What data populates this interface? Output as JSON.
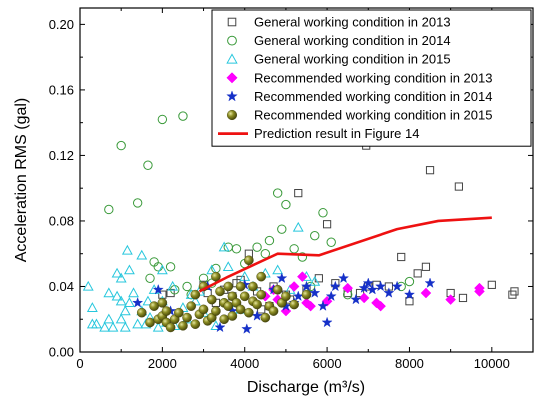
{
  "chart_data": {
    "type": "scatter",
    "xlabel": "Discharge (m³/s)",
    "ylabel": "Acceleration RMS (gal)",
    "xlim": [
      0,
      11000
    ],
    "ylim": [
      0,
      0.21
    ],
    "x_ticks": [
      0,
      2000,
      4000,
      6000,
      8000,
      10000
    ],
    "y_ticks": [
      0.0,
      0.04,
      0.08,
      0.12,
      0.16,
      0.2
    ],
    "x_tick_labels": [
      "0",
      "2000",
      "4000",
      "6000",
      "8000",
      "10000"
    ],
    "y_tick_labels": [
      "0.00",
      "0.04",
      "0.08",
      "0.12",
      "0.16",
      "0.20"
    ],
    "legend_position": "top-right",
    "series": [
      {
        "name": "General working condition in 2013",
        "marker": "square-open",
        "color": "#444444",
        "points": [
          [
            3000,
            0.041
          ],
          [
            3300,
            0.03
          ],
          [
            3500,
            0.038
          ],
          [
            3700,
            0.034
          ],
          [
            3800,
            0.042
          ],
          [
            4100,
            0.06
          ],
          [
            4300,
            0.037
          ],
          [
            4600,
            0.028
          ],
          [
            4700,
            0.04
          ],
          [
            5000,
            0.035
          ],
          [
            5300,
            0.097
          ],
          [
            5500,
            0.038
          ],
          [
            5800,
            0.045
          ],
          [
            6000,
            0.078
          ],
          [
            6500,
            0.036
          ],
          [
            6800,
            0.036
          ],
          [
            6950,
            0.126
          ],
          [
            7200,
            0.041
          ],
          [
            7500,
            0.04
          ],
          [
            7800,
            0.058
          ],
          [
            8200,
            0.048
          ],
          [
            8400,
            0.052
          ],
          [
            8500,
            0.111
          ],
          [
            9200,
            0.101
          ],
          [
            9300,
            0.033
          ],
          [
            10000,
            0.041
          ],
          [
            10500,
            0.035
          ],
          [
            10550,
            0.037
          ],
          [
            2000,
            0.035
          ],
          [
            2200,
            0.036
          ],
          [
            3100,
            0.036
          ],
          [
            3900,
            0.044
          ],
          [
            4400,
            0.026
          ],
          [
            5100,
            0.032
          ],
          [
            6200,
            0.042
          ],
          [
            7000,
            0.04
          ],
          [
            8000,
            0.031
          ],
          [
            9000,
            0.036
          ]
        ]
      },
      {
        "name": "General working condition in 2014",
        "marker": "circle-open",
        "color": "#3a9a3a",
        "points": [
          [
            700,
            0.087
          ],
          [
            1000,
            0.126
          ],
          [
            1400,
            0.091
          ],
          [
            1650,
            0.114
          ],
          [
            1900,
            0.052
          ],
          [
            2000,
            0.142
          ],
          [
            2200,
            0.052
          ],
          [
            2500,
            0.144
          ],
          [
            1700,
            0.045
          ],
          [
            2700,
            0.035
          ],
          [
            3300,
            0.051
          ],
          [
            3600,
            0.064
          ],
          [
            3800,
            0.063
          ],
          [
            4000,
            0.054
          ],
          [
            4300,
            0.064
          ],
          [
            4600,
            0.068
          ],
          [
            4800,
            0.097
          ],
          [
            5000,
            0.09
          ],
          [
            5200,
            0.063
          ],
          [
            5700,
            0.071
          ],
          [
            5900,
            0.085
          ],
          [
            6100,
            0.067
          ],
          [
            3200,
            0.042
          ],
          [
            3000,
            0.045
          ],
          [
            2300,
            0.038
          ],
          [
            1800,
            0.055
          ],
          [
            4500,
            0.06
          ],
          [
            5400,
            0.058
          ],
          [
            5600,
            0.04
          ],
          [
            2600,
            0.04
          ],
          [
            3500,
            0.03
          ],
          [
            6500,
            0.035
          ],
          [
            7800,
            0.04
          ],
          [
            8000,
            0.043
          ],
          [
            4900,
            0.075
          ]
        ]
      },
      {
        "name": "General working condition in 2015",
        "marker": "triangle-open",
        "color": "#27c7dd",
        "points": [
          [
            200,
            0.04
          ],
          [
            300,
            0.027
          ],
          [
            300,
            0.017
          ],
          [
            400,
            0.017
          ],
          [
            600,
            0.015
          ],
          [
            700,
            0.02
          ],
          [
            800,
            0.015
          ],
          [
            900,
            0.034
          ],
          [
            900,
            0.048
          ],
          [
            1000,
            0.045
          ],
          [
            1000,
            0.031
          ],
          [
            1000,
            0.02
          ],
          [
            1100,
            0.015
          ],
          [
            1100,
            0.025
          ],
          [
            1150,
            0.062
          ],
          [
            1200,
            0.05
          ],
          [
            1300,
            0.036
          ],
          [
            1400,
            0.017
          ],
          [
            1500,
            0.059
          ],
          [
            1500,
            0.025
          ],
          [
            1600,
            0.017
          ],
          [
            1700,
            0.021
          ],
          [
            1800,
            0.038
          ],
          [
            1900,
            0.015
          ],
          [
            2000,
            0.05
          ],
          [
            2000,
            0.031
          ],
          [
            2100,
            0.018
          ],
          [
            2300,
            0.016
          ],
          [
            2500,
            0.027
          ],
          [
            2600,
            0.02
          ],
          [
            2700,
            0.035
          ],
          [
            2900,
            0.037
          ],
          [
            3200,
            0.05
          ],
          [
            3300,
            0.016
          ],
          [
            3500,
            0.064
          ],
          [
            3600,
            0.052
          ],
          [
            3800,
            0.03
          ],
          [
            4000,
            0.046
          ],
          [
            4200,
            0.04
          ],
          [
            4500,
            0.048
          ],
          [
            4800,
            0.05
          ],
          [
            5100,
            0.038
          ],
          [
            5300,
            0.076
          ],
          [
            5500,
            0.046
          ],
          [
            5700,
            0.043
          ],
          [
            2800,
            0.031
          ],
          [
            1200,
            0.03
          ],
          [
            700,
            0.036
          ],
          [
            1650,
            0.031
          ],
          [
            2250,
            0.04
          ],
          [
            3000,
            0.024
          ],
          [
            3900,
            0.026
          ]
        ]
      },
      {
        "name": "Recommended working condition in 2013",
        "marker": "diamond-filled",
        "color": "#ff00ff",
        "points": [
          [
            4500,
            0.034
          ],
          [
            4700,
            0.038
          ],
          [
            5000,
            0.025
          ],
          [
            5200,
            0.04
          ],
          [
            5500,
            0.03
          ],
          [
            5600,
            0.028
          ],
          [
            6500,
            0.039
          ],
          [
            6900,
            0.033
          ],
          [
            7200,
            0.03
          ],
          [
            7300,
            0.028
          ],
          [
            8400,
            0.036
          ],
          [
            9000,
            0.032
          ],
          [
            9700,
            0.037
          ],
          [
            9700,
            0.039
          ],
          [
            6000,
            0.031
          ],
          [
            5400,
            0.046
          ],
          [
            4800,
            0.032
          ]
        ]
      },
      {
        "name": "Recommended working condition in 2014",
        "marker": "star-filled",
        "color": "#1530c8",
        "points": [
          [
            1400,
            0.03
          ],
          [
            1900,
            0.038
          ],
          [
            2200,
            0.025
          ],
          [
            3100,
            0.04
          ],
          [
            3400,
            0.015
          ],
          [
            3700,
            0.025
          ],
          [
            4000,
            0.041
          ],
          [
            4050,
            0.014
          ],
          [
            4300,
            0.022
          ],
          [
            4700,
            0.038
          ],
          [
            5000,
            0.028
          ],
          [
            5200,
            0.03
          ],
          [
            5300,
            0.034
          ],
          [
            5500,
            0.04
          ],
          [
            5700,
            0.036
          ],
          [
            5900,
            0.028
          ],
          [
            6000,
            0.018
          ],
          [
            6100,
            0.034
          ],
          [
            6200,
            0.04
          ],
          [
            6400,
            0.045
          ],
          [
            6900,
            0.039
          ],
          [
            7000,
            0.042
          ],
          [
            7100,
            0.038
          ],
          [
            7300,
            0.04
          ],
          [
            7500,
            0.036
          ],
          [
            7700,
            0.04
          ],
          [
            8000,
            0.035
          ],
          [
            8500,
            0.042
          ],
          [
            6700,
            0.032
          ],
          [
            4900,
            0.045
          ]
        ]
      },
      {
        "name": "Recommended working condition in 2015",
        "marker": "sphere-filled",
        "color": "#7e7f1c",
        "points": [
          [
            1500,
            0.024
          ],
          [
            1700,
            0.018
          ],
          [
            1800,
            0.028
          ],
          [
            1900,
            0.02
          ],
          [
            2000,
            0.022
          ],
          [
            2100,
            0.018
          ],
          [
            2100,
            0.025
          ],
          [
            2200,
            0.015
          ],
          [
            2300,
            0.02
          ],
          [
            2400,
            0.024
          ],
          [
            2500,
            0.016
          ],
          [
            2600,
            0.021
          ],
          [
            2700,
            0.028
          ],
          [
            2800,
            0.017
          ],
          [
            2900,
            0.023
          ],
          [
            3000,
            0.026
          ],
          [
            3000,
            0.04
          ],
          [
            3100,
            0.019
          ],
          [
            3200,
            0.032
          ],
          [
            3200,
            0.021
          ],
          [
            3300,
            0.025
          ],
          [
            3400,
            0.037
          ],
          [
            3500,
            0.03
          ],
          [
            3500,
            0.02
          ],
          [
            3600,
            0.028
          ],
          [
            3700,
            0.034
          ],
          [
            3700,
            0.022
          ],
          [
            3800,
            0.03
          ],
          [
            3900,
            0.04
          ],
          [
            3900,
            0.026
          ],
          [
            4000,
            0.034
          ],
          [
            4100,
            0.024
          ],
          [
            4200,
            0.031
          ],
          [
            4200,
            0.04
          ],
          [
            4300,
            0.029
          ],
          [
            4400,
            0.035
          ],
          [
            4500,
            0.021
          ],
          [
            4600,
            0.028
          ],
          [
            4800,
            0.038
          ],
          [
            4900,
            0.03
          ],
          [
            5000,
            0.034
          ],
          [
            5200,
            0.029
          ],
          [
            5500,
            0.035
          ],
          [
            4100,
            0.056
          ],
          [
            2800,
            0.035
          ],
          [
            3300,
            0.046
          ],
          [
            4400,
            0.046
          ],
          [
            2000,
            0.03
          ],
          [
            3600,
            0.04
          ],
          [
            4700,
            0.025
          ]
        ]
      },
      {
        "name": "Prediction result in Figure 14",
        "marker": "line",
        "color": "#ee1111",
        "points": [
          [
            2900,
            0.037
          ],
          [
            3600,
            0.046
          ],
          [
            4200,
            0.053
          ],
          [
            4800,
            0.06
          ],
          [
            5800,
            0.059
          ],
          [
            7700,
            0.075
          ],
          [
            8700,
            0.08
          ],
          [
            10000,
            0.082
          ]
        ]
      }
    ]
  }
}
